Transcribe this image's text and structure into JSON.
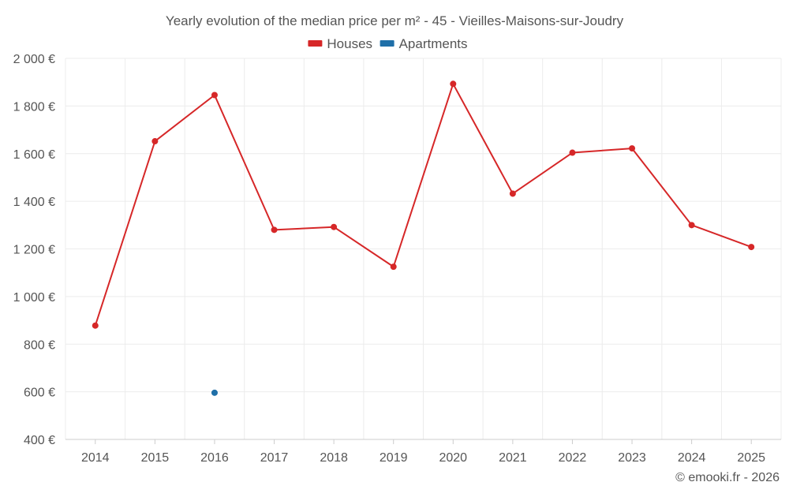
{
  "chart_data": {
    "type": "line",
    "title": "Yearly evolution of the median price per m² - 45 - Vieilles-Maisons-sur-Joudry",
    "xlabel": "",
    "ylabel": "",
    "categories": [
      "2014",
      "2015",
      "2016",
      "2017",
      "2018",
      "2019",
      "2020",
      "2021",
      "2022",
      "2023",
      "2024",
      "2025"
    ],
    "ylim": [
      400,
      2000
    ],
    "yticks": [
      400,
      600,
      800,
      1000,
      1200,
      1400,
      1600,
      1800,
      2000
    ],
    "ytick_labels": [
      "400 €",
      "600 €",
      "800 €",
      "1 000 €",
      "1 200 €",
      "1 400 €",
      "1 600 €",
      "1 800 €",
      "2 000 €"
    ],
    "grid": true,
    "legend_position": "top-center",
    "series": [
      {
        "name": "Houses",
        "color": "#d62728",
        "values": [
          878,
          1652,
          1846,
          1280,
          1292,
          1125,
          1893,
          1432,
          1604,
          1622,
          1300,
          1208
        ]
      },
      {
        "name": "Apartments",
        "color": "#1f6fa8",
        "values": [
          null,
          null,
          596,
          null,
          null,
          null,
          null,
          null,
          null,
          null,
          null,
          null
        ]
      }
    ]
  },
  "credit": "© emooki.fr - 2026"
}
